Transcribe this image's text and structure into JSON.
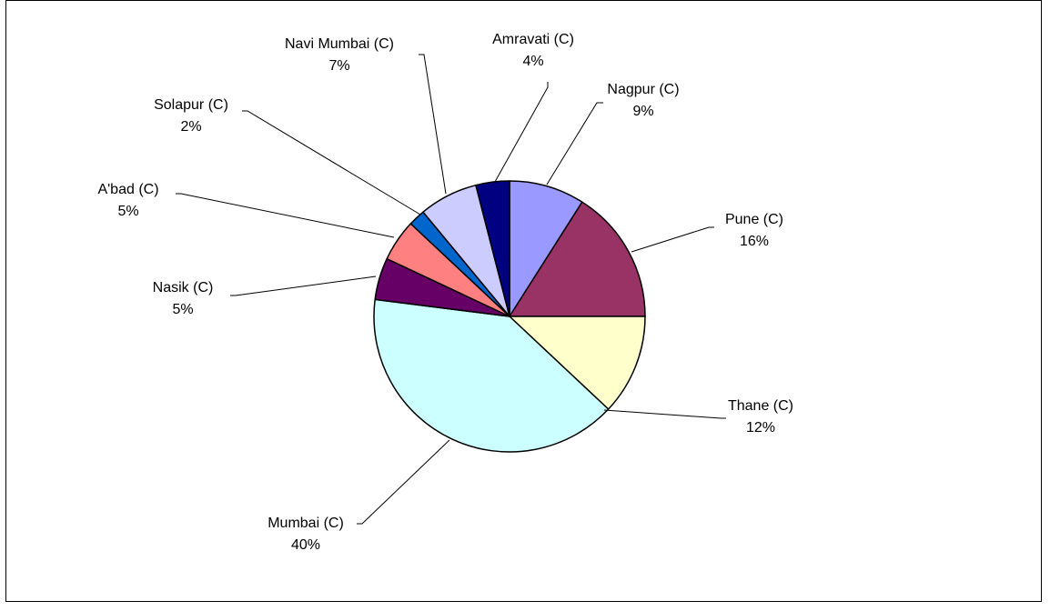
{
  "chart_data": {
    "type": "pie",
    "title": "",
    "legend": "none",
    "slices": [
      {
        "label": "Nagpur (C)",
        "percent_label": "9%",
        "value": 9,
        "color": "#9999ff"
      },
      {
        "label": "Pune (C)",
        "percent_label": "16%",
        "value": 16,
        "color": "#993366"
      },
      {
        "label": "Thane (C)",
        "percent_label": "12%",
        "value": 12,
        "color": "#ffffcc"
      },
      {
        "label": "Mumbai (C)",
        "percent_label": "40%",
        "value": 40,
        "color": "#ccffff"
      },
      {
        "label": "Nasik (C)",
        "percent_label": "5%",
        "value": 5,
        "color": "#660066"
      },
      {
        "label": "A'bad (C)",
        "percent_label": "5%",
        "value": 5,
        "color": "#ff8080"
      },
      {
        "label": "Solapur (C)",
        "percent_label": "2%",
        "value": 2,
        "color": "#0066cc"
      },
      {
        "label": "Navi Mumbai (C)",
        "percent_label": "7%",
        "value": 7,
        "color": "#ccccff"
      },
      {
        "label": "Amravati (C)",
        "percent_label": "4%",
        "value": 4,
        "color": "#000080"
      }
    ]
  }
}
